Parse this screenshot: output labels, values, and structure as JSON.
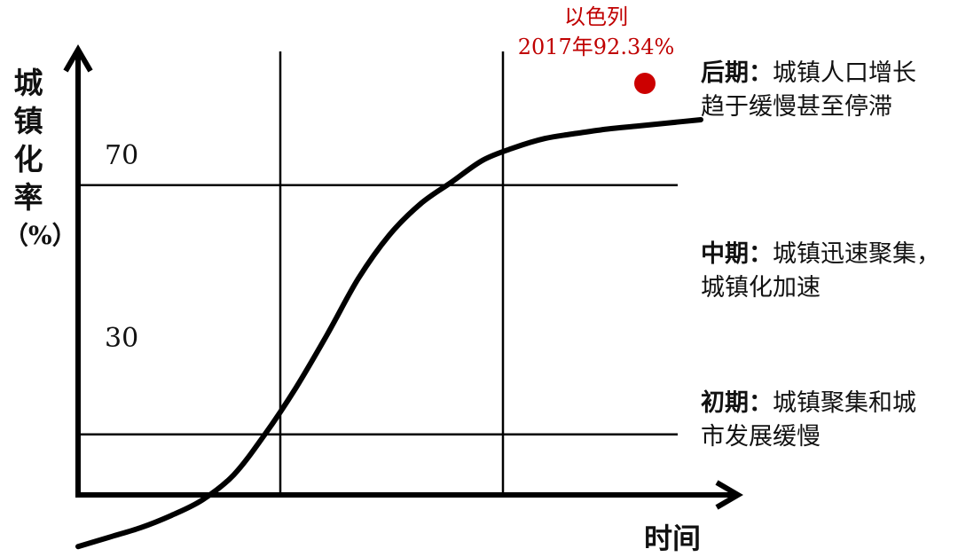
{
  "chart_data": {
    "type": "line",
    "ylabel_chars": [
      "城",
      "镇",
      "化",
      "率"
    ],
    "ylabel_unit": "（%）",
    "xlabel": "时间",
    "yticks": [
      "70",
      "30"
    ],
    "y_lines": [
      70,
      30
    ],
    "series": [
      {
        "x": [
          0,
          0.05,
          0.1,
          0.15,
          0.2,
          0.25,
          0.3,
          0.35,
          0.4,
          0.45,
          0.5,
          0.55,
          0.6,
          0.65,
          0.7,
          0.75,
          0.8,
          0.85,
          0.9,
          0.95,
          1.0
        ],
        "y": [
          12,
          13.5,
          15,
          17,
          19.5,
          23.5,
          30,
          37.5,
          46,
          55,
          62,
          67,
          70.5,
          74,
          76,
          77.5,
          78.3,
          79,
          79.5,
          80,
          80.5
        ]
      }
    ],
    "point": {
      "label_line1": "以色列",
      "label_line2": "2017年92.34%",
      "color": "#cc0000"
    },
    "stages": [
      {
        "title": "后期：",
        "line1": "城镇人口增长",
        "line2": "趋于缓慢甚至停滞"
      },
      {
        "title": "中期：",
        "line1": "城镇迅速聚集，",
        "line2": "城镇化加速"
      },
      {
        "title": "初期：",
        "line1": "城镇聚集和城",
        "line2": "市发展缓慢"
      }
    ]
  }
}
